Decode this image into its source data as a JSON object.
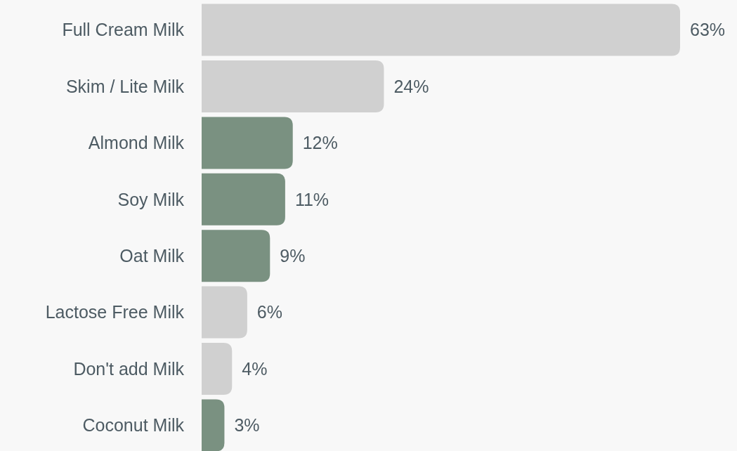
{
  "chart_data": {
    "type": "bar",
    "orientation": "horizontal",
    "categories": [
      "Full Cream Milk",
      "Skim / Lite Milk",
      "Almond Milk",
      "Soy Milk",
      "Oat Milk",
      "Lactose Free Milk",
      "Don't add Milk",
      "Coconut Milk"
    ],
    "values": [
      63,
      24,
      12,
      11,
      9,
      6,
      4,
      3
    ],
    "colors": [
      "#d0d0d0",
      "#d0d0d0",
      "#7a9181",
      "#7a9181",
      "#7a9181",
      "#d0d0d0",
      "#d0d0d0",
      "#7a9181"
    ],
    "value_labels": [
      "63%",
      "24%",
      "12%",
      "11%",
      "9%",
      "6%",
      "4%",
      "3%"
    ]
  }
}
